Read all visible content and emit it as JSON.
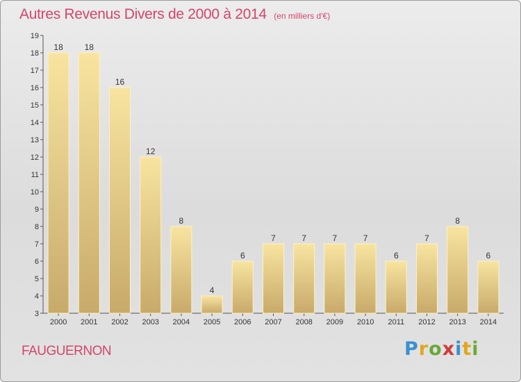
{
  "chart_data": {
    "type": "bar",
    "title": "Autres Revenus Divers de 2000 à 2014",
    "subtitle": "(en milliers d'€)",
    "categories": [
      "2000",
      "2001",
      "2002",
      "2003",
      "2004",
      "2005",
      "2006",
      "2007",
      "2008",
      "2009",
      "2010",
      "2011",
      "2012",
      "2013",
      "2014"
    ],
    "values": [
      18,
      18,
      16,
      12,
      8,
      4,
      6,
      7,
      7,
      7,
      7,
      6,
      7,
      8,
      6
    ],
    "ylim": [
      3,
      19
    ],
    "yticks": [
      3,
      4,
      5,
      6,
      7,
      8,
      9,
      10,
      11,
      12,
      13,
      14,
      15,
      16,
      17,
      18,
      19
    ],
    "grid": false,
    "colors": {
      "bar_top": "#f8e4a0",
      "bar_bottom": "#c8aa6a",
      "bar_edge": "#fff2c0"
    }
  },
  "footer": {
    "commune": "FAUGUERNON",
    "logo_letters": [
      {
        "char": "P",
        "color": "#3a8fd0"
      },
      {
        "char": "r",
        "color": "#e2a51c"
      },
      {
        "char": "o",
        "color": "#6aa83a"
      },
      {
        "char": "x",
        "color": "#d23a3a"
      },
      {
        "char": "i",
        "color": "#3a8fd0"
      },
      {
        "char": "t",
        "color": "#e2a51c"
      },
      {
        "char": "i",
        "color": "#6aa83a"
      }
    ]
  },
  "colors": {
    "accent": "#d2466a"
  }
}
